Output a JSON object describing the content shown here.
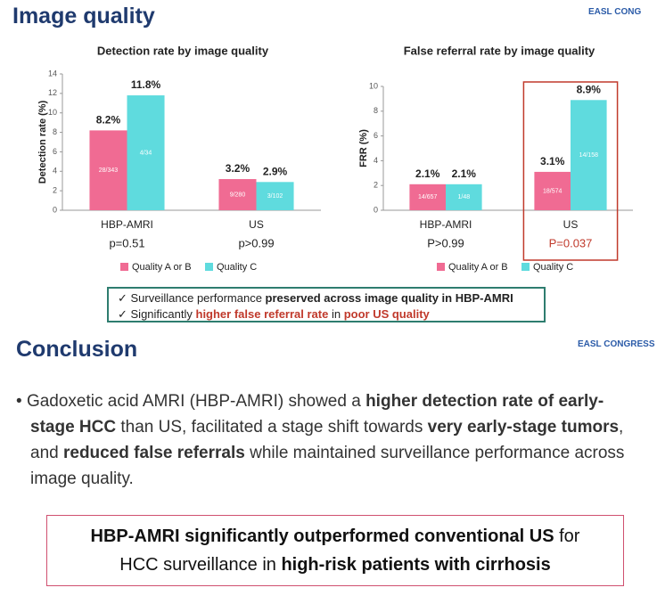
{
  "header": {
    "title": "Image quality",
    "logo": "EASL CONG"
  },
  "chart_data": [
    {
      "type": "bar",
      "title": "Detection rate by image quality",
      "ylabel": "Detection rate (%)",
      "categories": [
        "HBP-AMRI",
        "US"
      ],
      "category_notes": [
        "p=0.51",
        "p>0.99"
      ],
      "series": [
        {
          "name": "Quality A or B",
          "color": "#f06b93",
          "values": [
            8.2,
            3.2
          ],
          "value_labels": [
            "8.2%",
            "3.2%"
          ],
          "inner_labels": [
            "28/343",
            "9/280"
          ]
        },
        {
          "name": "Quality C",
          "color": "#5fdbde",
          "values": [
            11.8,
            2.9
          ],
          "value_labels": [
            "11.8%",
            "2.9%"
          ],
          "inner_labels": [
            "4/34",
            "3/102"
          ]
        }
      ],
      "ylim": [
        0,
        14
      ],
      "yticks": [
        0,
        2,
        4,
        6,
        8,
        10,
        12,
        14
      ],
      "legend": "bottom"
    },
    {
      "type": "bar",
      "title": "False referral rate by image quality",
      "ylabel": "FRR (%)",
      "categories": [
        "HBP-AMRI",
        "US"
      ],
      "category_notes": [
        "P>0.99",
        "P=0.037"
      ],
      "series": [
        {
          "name": "Quality A or B",
          "color": "#f06b93",
          "values": [
            2.1,
            3.1
          ],
          "value_labels": [
            "2.1%",
            "3.1%"
          ],
          "inner_labels": [
            "14/657",
            "18/574"
          ]
        },
        {
          "name": "Quality C",
          "color": "#5fdbde",
          "values": [
            2.1,
            8.9
          ],
          "value_labels": [
            "2.1%",
            "8.9%"
          ],
          "inner_labels": [
            "1/48",
            "14/158"
          ]
        }
      ],
      "ylim": [
        0,
        10
      ],
      "yticks": [
        0,
        2,
        4,
        6,
        8,
        10
      ],
      "legend": "bottom",
      "highlight_index": 1,
      "highlight_color": "#c0392b"
    }
  ],
  "checks": [
    [
      {
        "text": "Surveillance performance "
      },
      {
        "text": "preserved across image quality in HBP-AMRI",
        "bold": true
      }
    ],
    [
      {
        "text": "Significantly "
      },
      {
        "text": "higher false referral rate",
        "bold": true,
        "color": "#c0392b"
      },
      {
        "text": " in "
      },
      {
        "text": "poor US quality",
        "bold": true,
        "color": "#c0392b"
      }
    ]
  ],
  "conclusion": {
    "title": "Conclusion",
    "logo": "EASL CONGRESS",
    "bullet": [
      {
        "text": "Gadoxetic acid AMRI (HBP-AMRI) showed a "
      },
      {
        "text": "higher detection rate of early-stage HCC",
        "bold": true
      },
      {
        "text": " than US, facilitated a stage shift towards "
      },
      {
        "text": "very early-stage tumors",
        "bold": true
      },
      {
        "text": ", and "
      },
      {
        "text": "reduced false referrals",
        "bold": true
      },
      {
        "text": " while maintained surveillance performance across image quality."
      }
    ],
    "box": [
      {
        "text": "HBP-AMRI significantly outperformed conventional US",
        "bold": true
      },
      {
        "text": " for HCC surveillance in "
      },
      {
        "text": "high-risk patients with cirrhosis",
        "bold": true
      }
    ]
  }
}
